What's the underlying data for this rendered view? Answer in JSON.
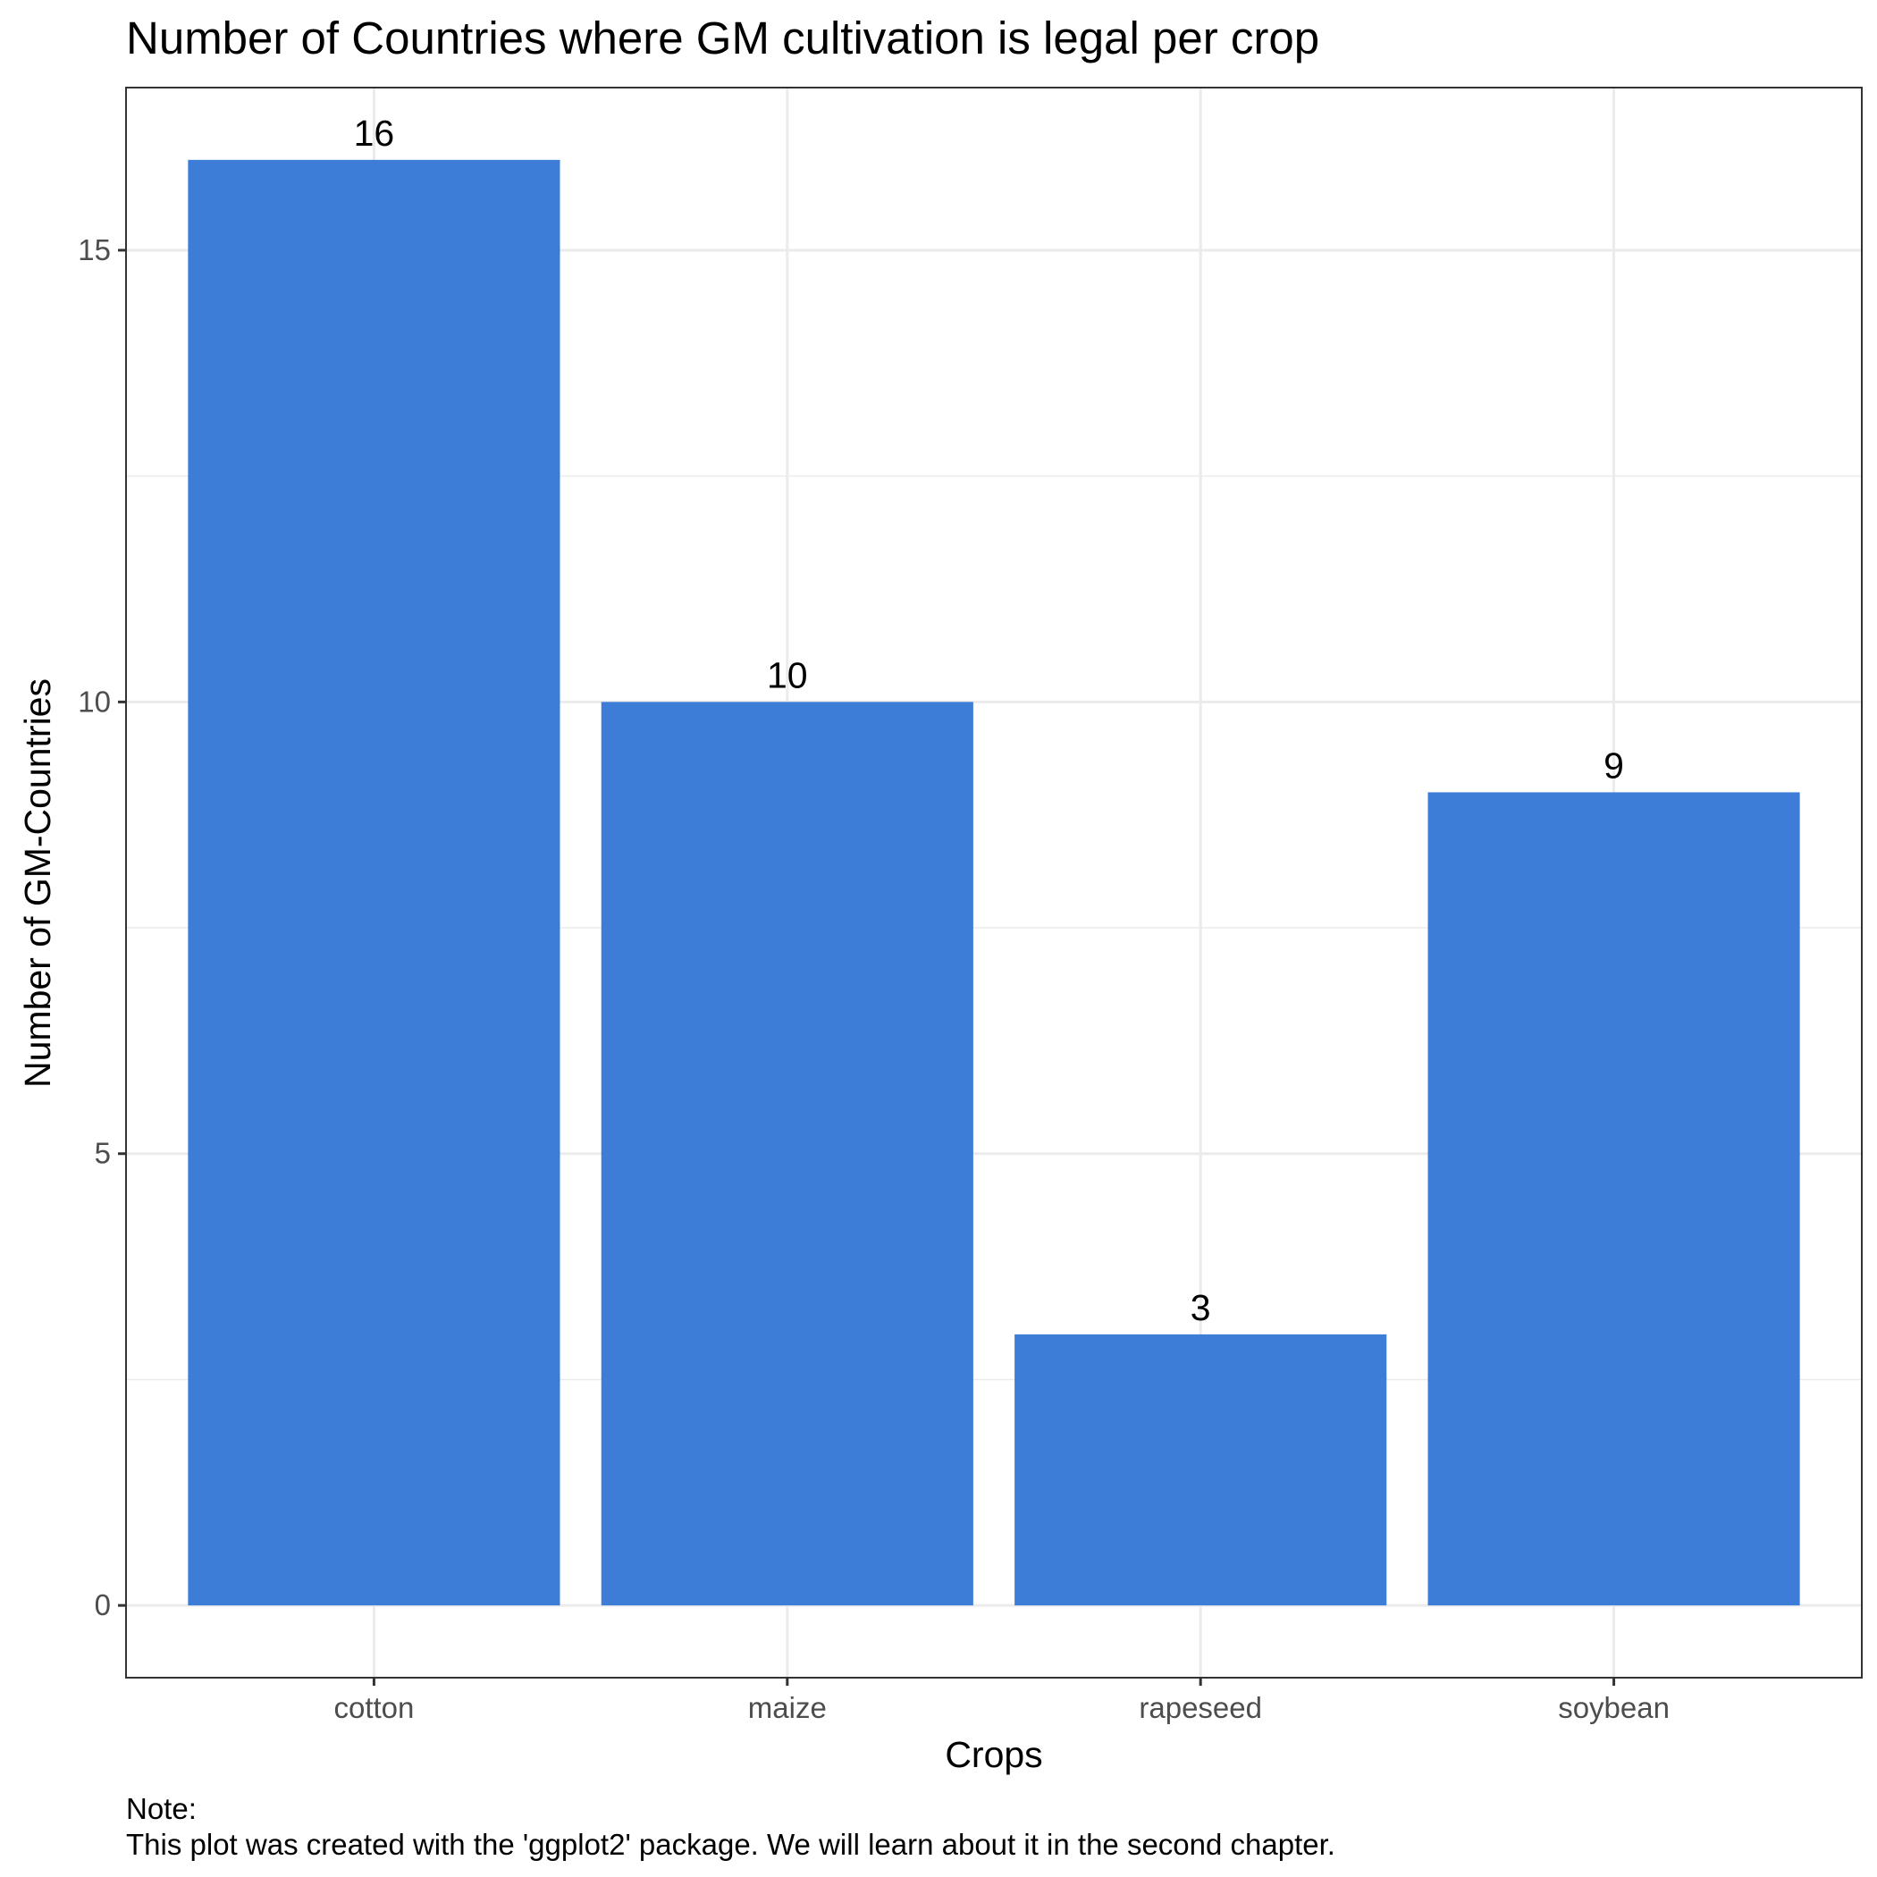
{
  "chart_data": {
    "type": "bar",
    "title": "Number of Countries where GM cultivation is legal per crop",
    "xlabel": "Crops",
    "ylabel": "Number of GM-Countries",
    "categories": [
      "cotton",
      "maize",
      "rapeseed",
      "soybean"
    ],
    "values": [
      16,
      10,
      3,
      9
    ],
    "data_labels": [
      "16",
      "10",
      "3",
      "9"
    ],
    "ylim": [
      -0.8,
      16.8
    ],
    "y_ticks": [
      0,
      5,
      10,
      15
    ],
    "y_tick_labels": [
      "0",
      "5",
      "10",
      "15"
    ],
    "y_minor_ticks": [
      2.5,
      7.5,
      12.5
    ],
    "grid": true,
    "bar_color": "#3d7dd8",
    "grid_color": "#ebebeb",
    "panel_border_color": "#333333",
    "caption": {
      "line1": "Note:",
      "line2": "This plot was created with the 'ggplot2' package. We will learn about it in the second chapter."
    }
  }
}
